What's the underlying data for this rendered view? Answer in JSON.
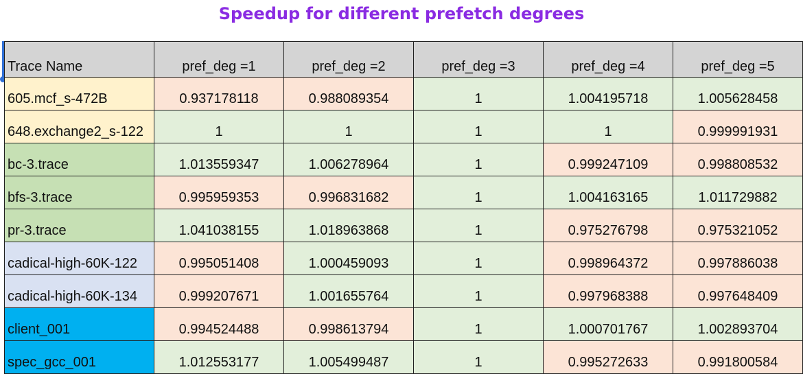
{
  "chart_data": {
    "type": "table",
    "title": "Speedup for different prefetch degrees",
    "columns": [
      "Trace Name",
      "pref_deg =1",
      "pref_deg =2",
      "pref_deg =3",
      "pref_deg =4",
      "pref_deg =5"
    ],
    "rows": [
      {
        "name": "605.mcf_s-472B",
        "values": [
          "0.937178118",
          "0.988089354",
          "1",
          "1.004195718",
          "1.005628458"
        ]
      },
      {
        "name": "648.exchange2_s-122",
        "values": [
          "1",
          "1",
          "1",
          "1",
          "0.999991931"
        ]
      },
      {
        "name": "bc-3.trace",
        "values": [
          "1.013559347",
          "1.006278964",
          "1",
          "0.999247109",
          "0.998808532"
        ]
      },
      {
        "name": "bfs-3.trace",
        "values": [
          "0.995959353",
          "0.996831682",
          "1",
          "1.004163165",
          "1.011729882"
        ]
      },
      {
        "name": "pr-3.trace",
        "values": [
          "1.041038155",
          "1.018963868",
          "1",
          "0.975276798",
          "0.975321052"
        ]
      },
      {
        "name": "cadical-high-60K-122",
        "values": [
          "0.995051408",
          "1.000459093",
          "1",
          "0.998964372",
          "0.997886038"
        ]
      },
      {
        "name": "cadical-high-60K-134",
        "values": [
          "0.999207671",
          "1.001655764",
          "1",
          "0.997968388",
          "0.997648409"
        ]
      },
      {
        "name": "client_001",
        "values": [
          "0.994524488",
          "0.998613794",
          "1",
          "1.000701767",
          "1.002893704"
        ]
      },
      {
        "name": "spec_gcc_001",
        "values": [
          "1.012553177",
          "1.005499487",
          "1",
          "0.995272633",
          "0.991800584"
        ]
      }
    ]
  },
  "colors": {
    "title": "#8a2be2",
    "header_bg": "#d4d4d4",
    "speedup_bg": "#e2efda",
    "slowdown_bg": "#fce4d6",
    "group_spec_bg": "#fff2cc",
    "group_gap_bg": "#c6e0b4",
    "group_cadical_bg": "#d9e1f2",
    "group_other_bg": "#00b0f0"
  },
  "row_groups": [
    "spec",
    "spec",
    "gap",
    "gap",
    "gap",
    "cadical",
    "cadical",
    "other",
    "other"
  ]
}
